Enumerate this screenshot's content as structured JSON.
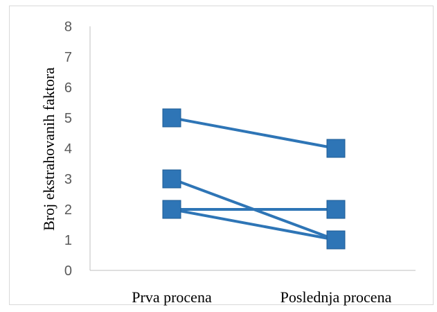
{
  "chart_data": {
    "type": "line",
    "title": "",
    "xlabel": "",
    "ylabel": "Broj ekstrahovanih faktora",
    "categories": [
      "Prva procena",
      "Poslednja procena"
    ],
    "ylim": [
      0,
      8
    ],
    "yticks": [
      "0",
      "1",
      "2",
      "3",
      "4",
      "5",
      "6",
      "7",
      "8"
    ],
    "grid": false,
    "legend": "none",
    "marker": "square",
    "color": "#2e75b6",
    "series": [
      {
        "values": [
          5,
          4
        ]
      },
      {
        "values": [
          3,
          1
        ]
      },
      {
        "values": [
          2,
          2
        ]
      },
      {
        "values": [
          2,
          1
        ]
      }
    ]
  }
}
